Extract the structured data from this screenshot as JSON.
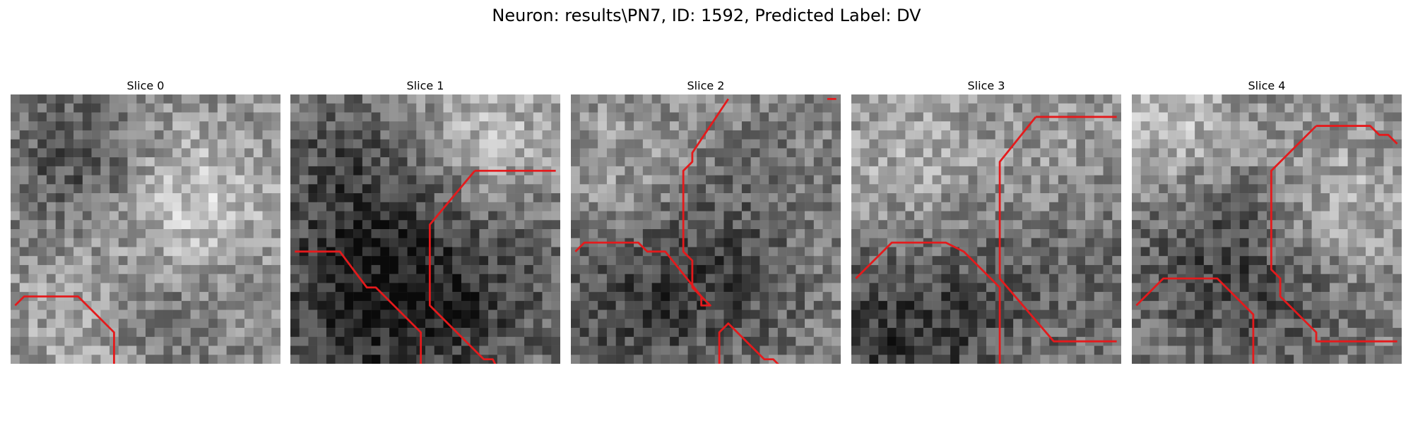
{
  "figure": {
    "title": "Neuron: results\\PN7, ID: 1592, Predicted Label: DV"
  },
  "panels": [
    {
      "title": "Slice 0",
      "contours": [
        [
          [
            0.5,
            23.5
          ],
          [
            1.5,
            22.5
          ],
          [
            4.5,
            22.5
          ],
          [
            7.5,
            22.5
          ],
          [
            11.5,
            26.5
          ],
          [
            11.5,
            31.5
          ],
          [
            9.5,
            33.5
          ]
        ]
      ]
    },
    {
      "title": "Slice 1",
      "contours": [
        [
          [
            0.5,
            17.5
          ],
          [
            5.5,
            17.5
          ],
          [
            8.5,
            21.5
          ],
          [
            9.5,
            21.5
          ],
          [
            14.5,
            26.5
          ],
          [
            14.5,
            31.5
          ],
          [
            12.5,
            33.5
          ]
        ],
        [
          [
            20.5,
            8.5
          ],
          [
            15.5,
            14.5
          ],
          [
            15.5,
            23.5
          ],
          [
            16.5,
            24.5
          ],
          [
            21.5,
            29.5
          ],
          [
            22.5,
            29.5
          ],
          [
            23.5,
            31.5
          ],
          [
            28.5,
            31.5
          ],
          [
            29.5,
            30.5
          ]
        ],
        [
          [
            20.5,
            8.5
          ],
          [
            29.5,
            8.5
          ]
        ]
      ]
    },
    {
      "title": "Slice 2",
      "contours": [
        [
          [
            0.5,
            17.5
          ],
          [
            1.5,
            16.5
          ],
          [
            7.5,
            16.5
          ],
          [
            8.5,
            17.5
          ],
          [
            10.5,
            17.5
          ],
          [
            14.5,
            22.5
          ],
          [
            14.5,
            23.5
          ],
          [
            15.5,
            23.5
          ],
          [
            13.5,
            21.5
          ],
          [
            13.5,
            18.5
          ],
          [
            12.5,
            17.5
          ],
          [
            12.5,
            8.5
          ],
          [
            13.5,
            7.5
          ],
          [
            13.5,
            6.5
          ],
          [
            17.5,
            0.5
          ]
        ],
        [
          [
            14.5,
            33.5
          ],
          [
            16.5,
            31.5
          ],
          [
            16.5,
            26.5
          ],
          [
            17.5,
            25.5
          ],
          [
            21.5,
            29.5
          ],
          [
            22.5,
            29.5
          ],
          [
            24.5,
            31.5
          ],
          [
            29.5,
            31.5
          ]
        ],
        [
          [
            29.5,
            0.5
          ],
          [
            28.5,
            0.5
          ]
        ]
      ]
    },
    {
      "title": "Slice 3",
      "contours": [
        [
          [
            0.5,
            20.5
          ],
          [
            4.5,
            16.5
          ],
          [
            10.5,
            16.5
          ],
          [
            12.5,
            17.5
          ],
          [
            16.5,
            21.5
          ],
          [
            16.5,
            31.5
          ],
          [
            13.5,
            33.5
          ]
        ],
        [
          [
            20.5,
            2.5
          ],
          [
            16.5,
            7.5
          ],
          [
            16.5,
            20.5
          ],
          [
            22.5,
            27.5
          ],
          [
            29.5,
            27.5
          ]
        ],
        [
          [
            20.5,
            2.5
          ],
          [
            29.5,
            2.5
          ]
        ],
        [
          [
            0.5,
            31.5
          ],
          [
            2.5,
            33.5
          ]
        ]
      ]
    },
    {
      "title": "Slice 4",
      "contours": [
        [
          [
            0.5,
            23.5
          ],
          [
            3.5,
            20.5
          ],
          [
            9.5,
            20.5
          ],
          [
            13.5,
            24.5
          ],
          [
            13.5,
            31.5
          ],
          [
            11.5,
            33.5
          ]
        ],
        [
          [
            20.5,
            3.5
          ],
          [
            15.5,
            8.5
          ],
          [
            15.5,
            19.5
          ],
          [
            16.5,
            20.5
          ],
          [
            16.5,
            22.5
          ],
          [
            20.5,
            26.5
          ],
          [
            20.5,
            27.5
          ],
          [
            29.5,
            27.5
          ]
        ],
        [
          [
            20.5,
            3.5
          ],
          [
            26.5,
            3.5
          ],
          [
            27.5,
            4.5
          ],
          [
            28.5,
            4.5
          ],
          [
            29.5,
            5.5
          ]
        ],
        [
          [
            0.5,
            32.5
          ],
          [
            1.5,
            33.5
          ]
        ]
      ]
    }
  ]
}
